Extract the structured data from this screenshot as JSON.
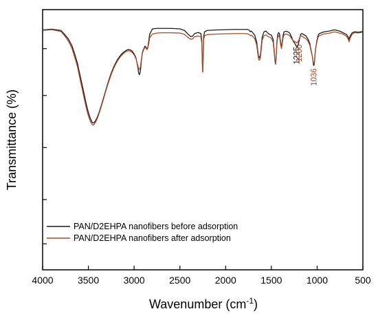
{
  "chart_data": {
    "type": "line",
    "xlabel": "Wavenumber (cm",
    "xlabel_sup": "-1",
    "xlabel_close": ")",
    "ylabel": "Transmittance (%)",
    "xlim": [
      4000,
      500
    ],
    "ylim": [
      0,
      100
    ],
    "x_direction": "reversed",
    "x_ticks": [
      4000,
      3500,
      3000,
      2500,
      2000,
      1500,
      1000,
      500
    ],
    "x_tick_labels": [
      "4000",
      "3500",
      "3000",
      "2500",
      "2000",
      "1500",
      "1000",
      "500"
    ],
    "y_ticks": [
      10,
      27,
      47,
      67,
      85
    ],
    "y_tick_labels_shown": false,
    "grid": false,
    "legend_position": "bottom-left",
    "series": [
      {
        "name": "PAN/D2EHPA nanofibers before adsorption",
        "color": "#1a1a1a",
        "x": [
          4000,
          3900,
          3800,
          3760,
          3720,
          3680,
          3650,
          3620,
          3600,
          3580,
          3560,
          3540,
          3520,
          3500,
          3480,
          3460,
          3450,
          3440,
          3420,
          3400,
          3380,
          3360,
          3340,
          3320,
          3300,
          3280,
          3260,
          3240,
          3220,
          3200,
          3180,
          3160,
          3140,
          3120,
          3100,
          3080,
          3060,
          3040,
          3020,
          3000,
          2980,
          2960,
          2950,
          2940,
          2930,
          2920,
          2910,
          2900,
          2890,
          2880,
          2870,
          2860,
          2850,
          2840,
          2830,
          2800,
          2750,
          2700,
          2600,
          2500,
          2450,
          2400,
          2380,
          2360,
          2340,
          2300,
          2270,
          2260,
          2255,
          2250,
          2245,
          2240,
          2230,
          2200,
          2100,
          2000,
          1900,
          1800,
          1760,
          1740,
          1730,
          1720,
          1700,
          1680,
          1660,
          1650,
          1640,
          1630,
          1620,
          1610,
          1600,
          1580,
          1560,
          1540,
          1520,
          1500,
          1480,
          1470,
          1460,
          1455,
          1450,
          1445,
          1440,
          1430,
          1420,
          1410,
          1400,
          1390,
          1380,
          1370,
          1360,
          1340,
          1320,
          1300,
          1280,
          1260,
          1240,
          1225,
          1210,
          1200,
          1190,
          1180,
          1170,
          1160,
          1150,
          1140,
          1120,
          1100,
          1080,
          1070,
          1060,
          1050,
          1045,
          1040,
          1036,
          1030,
          1025,
          1020,
          1010,
          1000,
          990,
          980,
          960,
          940,
          920,
          900,
          880,
          860,
          840,
          820,
          800,
          780,
          760,
          740,
          720,
          700,
          680,
          660,
          650,
          640,
          620,
          600,
          580,
          560,
          540,
          520,
          500
        ],
        "y": [
          92.2,
          92.5,
          92.0,
          90.5,
          88.8,
          86.2,
          83.0,
          79.5,
          76.2,
          73.0,
          69.8,
          66.5,
          63.2,
          60.5,
          58.3,
          56.8,
          56.4,
          56.5,
          57.4,
          58.9,
          60.8,
          63.0,
          65.4,
          67.8,
          70.2,
          72.5,
          74.6,
          76.5,
          78.2,
          79.6,
          80.9,
          81.9,
          82.8,
          83.5,
          84.0,
          84.5,
          84.7,
          84.5,
          84.0,
          83.0,
          81.5,
          78.0,
          75.5,
          75.0,
          76.8,
          80.5,
          83.5,
          84.5,
          85.3,
          86.0,
          85.5,
          84.8,
          85.5,
          88.0,
          90.5,
          92.6,
          92.8,
          92.8,
          92.8,
          92.6,
          92.0,
          90.2,
          89.6,
          89.8,
          90.8,
          91.2,
          90.8,
          88.0,
          80.0,
          76.0,
          82.0,
          89.5,
          91.5,
          92.0,
          92.2,
          92.3,
          92.4,
          92.4,
          92.4,
          92.0,
          91.5,
          91.8,
          91.0,
          90.0,
          87.5,
          84.5,
          82.0,
          81.5,
          82.5,
          86.0,
          89.5,
          91.5,
          91.8,
          91.0,
          90.5,
          90.2,
          88.5,
          84.5,
          80.2,
          79.0,
          80.5,
          84.0,
          87.5,
          90.5,
          91.2,
          90.5,
          87.5,
          85.5,
          88.0,
          90.5,
          91.5,
          91.7,
          91.5,
          91.0,
          89.5,
          87.8,
          86.8,
          85.8,
          86.0,
          87.5,
          89.0,
          90.5,
          90.8,
          90.7,
          90.5,
          90.3,
          89.8,
          88.7,
          87.0,
          85.0,
          83.5,
          81.5,
          80.0,
          78.8,
          78.5,
          79.5,
          81.5,
          84.0,
          86.5,
          88.5,
          90.0,
          90.7,
          91.0,
          91.3,
          91.5,
          91.6,
          91.7,
          91.8,
          92.0,
          92.2,
          92.2,
          92.0,
          91.8,
          91.5,
          91.2,
          90.8,
          90.5,
          89.5,
          88.5,
          89.8,
          91.0,
          91.4,
          91.5,
          91.3,
          91.4,
          91.5,
          91.6
        ]
      },
      {
        "name": "PAN/D2EHPA nanofibers after adsorption",
        "color": "#a64a2a",
        "x": [
          4000,
          3900,
          3800,
          3760,
          3720,
          3680,
          3650,
          3620,
          3600,
          3580,
          3560,
          3540,
          3520,
          3500,
          3480,
          3460,
          3450,
          3440,
          3420,
          3400,
          3380,
          3360,
          3340,
          3320,
          3300,
          3280,
          3260,
          3240,
          3220,
          3200,
          3180,
          3160,
          3140,
          3120,
          3100,
          3080,
          3060,
          3040,
          3020,
          3000,
          2980,
          2960,
          2950,
          2940,
          2930,
          2920,
          2910,
          2900,
          2890,
          2880,
          2870,
          2860,
          2850,
          2840,
          2830,
          2800,
          2750,
          2700,
          2600,
          2500,
          2450,
          2400,
          2380,
          2360,
          2340,
          2300,
          2270,
          2260,
          2255,
          2250,
          2245,
          2240,
          2230,
          2200,
          2100,
          2000,
          1900,
          1800,
          1760,
          1740,
          1730,
          1720,
          1700,
          1680,
          1660,
          1650,
          1640,
          1630,
          1620,
          1610,
          1600,
          1580,
          1560,
          1540,
          1520,
          1500,
          1480,
          1470,
          1460,
          1455,
          1450,
          1445,
          1440,
          1430,
          1420,
          1410,
          1400,
          1390,
          1380,
          1370,
          1360,
          1340,
          1320,
          1300,
          1280,
          1260,
          1240,
          1225,
          1210,
          1200,
          1190,
          1180,
          1170,
          1160,
          1150,
          1140,
          1120,
          1100,
          1080,
          1070,
          1060,
          1050,
          1045,
          1040,
          1036,
          1030,
          1025,
          1020,
          1010,
          1000,
          990,
          980,
          960,
          940,
          920,
          900,
          880,
          860,
          840,
          820,
          800,
          780,
          760,
          740,
          720,
          700,
          680,
          660,
          650,
          640,
          620,
          600,
          580,
          560,
          540,
          520,
          500
        ],
        "y": [
          92.0,
          92.3,
          91.6,
          90.0,
          88.0,
          85.2,
          81.8,
          78.2,
          74.8,
          71.5,
          68.2,
          65.0,
          61.8,
          59.2,
          57.2,
          55.9,
          55.6,
          55.8,
          56.8,
          58.4,
          60.4,
          62.6,
          65.0,
          67.4,
          69.8,
          72.0,
          74.1,
          76.0,
          77.7,
          79.1,
          80.4,
          81.4,
          82.3,
          83.0,
          83.6,
          84.0,
          84.2,
          84.0,
          83.5,
          82.6,
          81.2,
          78.6,
          77.2,
          77.0,
          78.2,
          81.0,
          83.2,
          84.2,
          85.0,
          85.6,
          85.2,
          84.6,
          85.2,
          87.0,
          89.2,
          90.6,
          91.0,
          91.1,
          91.1,
          91.0,
          90.5,
          89.0,
          88.6,
          88.8,
          89.6,
          89.9,
          89.5,
          87.0,
          79.8,
          76.2,
          82.0,
          88.5,
          90.0,
          90.4,
          90.6,
          90.7,
          90.8,
          90.8,
          90.7,
          90.4,
          90.0,
          90.2,
          89.6,
          88.7,
          86.3,
          83.5,
          81.0,
          80.5,
          81.5,
          85.0,
          88.3,
          90.0,
          90.3,
          89.8,
          89.4,
          89.0,
          87.4,
          83.8,
          80.0,
          79.0,
          80.3,
          83.5,
          86.8,
          89.5,
          90.0,
          89.5,
          86.8,
          85.0,
          87.3,
          89.5,
          90.4,
          90.6,
          90.4,
          90.0,
          88.9,
          88.0,
          87.7,
          87.2,
          87.6,
          88.3,
          89.3,
          90.0,
          89.9,
          89.7,
          89.4,
          89.2,
          88.8,
          87.9,
          86.3,
          84.6,
          83.3,
          81.6,
          80.2,
          79.4,
          79.2,
          80.0,
          81.8,
          84.0,
          86.3,
          88.0,
          89.3,
          89.9,
          90.2,
          90.5,
          90.7,
          90.8,
          90.9,
          91.0,
          91.2,
          91.4,
          91.4,
          91.2,
          91.0,
          90.8,
          90.6,
          90.2,
          89.8,
          88.6,
          87.6,
          89.0,
          90.4,
          91.0,
          91.2,
          91.0,
          91.1,
          91.2,
          91.3
        ]
      }
    ],
    "annotations": [
      {
        "text": "1225",
        "x": 1225,
        "y": 86.8,
        "color": "#1a1a1a",
        "rotation": "vertical"
      },
      {
        "text": "1200",
        "x": 1200,
        "y": 87.7,
        "color": "#a64a2a",
        "rotation": "vertical"
      },
      {
        "text": "1036",
        "x": 1036,
        "y": 78.5,
        "color": "#a64a2a",
        "rotation": "vertical"
      }
    ]
  }
}
